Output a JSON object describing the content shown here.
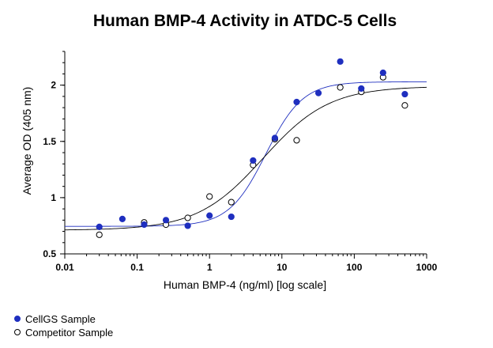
{
  "chart_data": {
    "type": "scatter",
    "title": "Human BMP-4 Activity in ATDC-5 Cells",
    "xlabel": "Human BMP-4 (ng/ml) [log scale]",
    "ylabel": "Average OD (405 nm)",
    "xscale": "log",
    "xlim": [
      0.01,
      1000
    ],
    "ylim": [
      0.5,
      2.3
    ],
    "x_ticks": [
      0.01,
      0.1,
      1,
      10,
      100,
      1000
    ],
    "x_tick_labels": [
      "0.01",
      "0.1",
      "1",
      "10",
      "100",
      "1000"
    ],
    "y_ticks": [
      0.5,
      1,
      1.5,
      2
    ],
    "y_tick_labels": [
      "0.5",
      "1",
      "1.5",
      "2"
    ],
    "grid": false,
    "legend_position": "bottom-left",
    "series": [
      {
        "name": "CellGS Sample",
        "color": "#1f2fbf",
        "marker": "filled-circle",
        "points": [
          {
            "x": 0.03,
            "y": 0.74
          },
          {
            "x": 0.0625,
            "y": 0.81
          },
          {
            "x": 0.125,
            "y": 0.76
          },
          {
            "x": 0.25,
            "y": 0.8
          },
          {
            "x": 0.5,
            "y": 0.75
          },
          {
            "x": 1,
            "y": 0.84
          },
          {
            "x": 2,
            "y": 0.83
          },
          {
            "x": 4,
            "y": 1.33
          },
          {
            "x": 8,
            "y": 1.53
          },
          {
            "x": 16,
            "y": 1.85
          },
          {
            "x": 32,
            "y": 1.93
          },
          {
            "x": 64,
            "y": 2.21
          },
          {
            "x": 125,
            "y": 1.97
          },
          {
            "x": 250,
            "y": 2.11
          },
          {
            "x": 500,
            "y": 1.92
          }
        ],
        "fit_curve": {
          "bottom": 0.745,
          "top": 2.03,
          "ec50": 6.0,
          "hill": 1.7
        }
      },
      {
        "name": "Competitor Sample",
        "color": "#000000",
        "marker": "open-circle",
        "points": [
          {
            "x": 0.03,
            "y": 0.67
          },
          {
            "x": 0.125,
            "y": 0.78
          },
          {
            "x": 0.25,
            "y": 0.76
          },
          {
            "x": 0.5,
            "y": 0.82
          },
          {
            "x": 1,
            "y": 1.01
          },
          {
            "x": 2,
            "y": 0.96
          },
          {
            "x": 4,
            "y": 1.29
          },
          {
            "x": 8,
            "y": 1.52
          },
          {
            "x": 16,
            "y": 1.51
          },
          {
            "x": 64,
            "y": 1.98
          },
          {
            "x": 125,
            "y": 1.94
          },
          {
            "x": 250,
            "y": 2.07
          },
          {
            "x": 500,
            "y": 1.82
          }
        ],
        "fit_curve": {
          "bottom": 0.71,
          "top": 1.99,
          "ec50": 5.5,
          "hill": 0.95
        }
      }
    ]
  }
}
